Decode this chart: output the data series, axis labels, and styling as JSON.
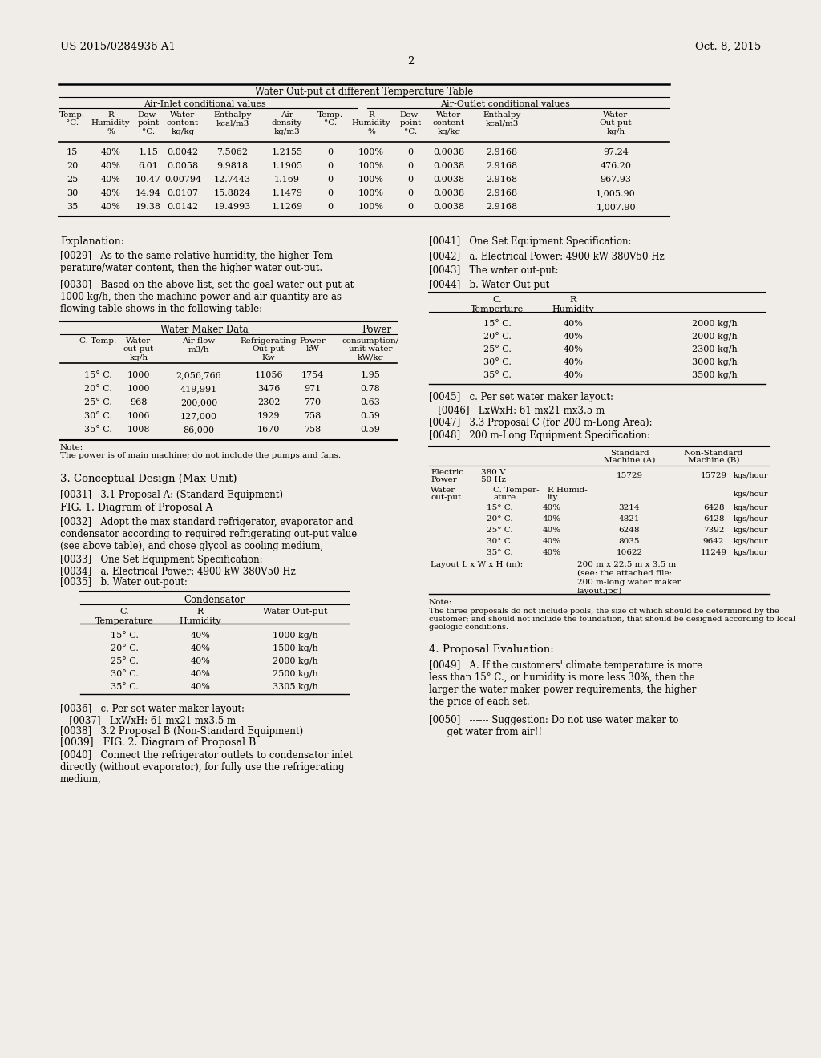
{
  "bg_color": "#f0ede8",
  "header_left": "US 2015/0284936 A1",
  "header_right": "Oct. 8, 2015",
  "page_num": "2",
  "table1_title": "Water Out-put at different Temperature Table",
  "table1_sub1": "Air-Inlet conditional values",
  "table1_sub2": "Air-Outlet conditional values",
  "table1_data": [
    [
      "15",
      "40%",
      "1.15",
      "0.0042",
      "7.5062",
      "1.2155",
      "0",
      "100%",
      "0",
      "0.0038",
      "2.9168",
      "97.24"
    ],
    [
      "20",
      "40%",
      "6.01",
      "0.0058",
      "9.9818",
      "1.1905",
      "0",
      "100%",
      "0",
      "0.0038",
      "2.9168",
      "476.20"
    ],
    [
      "25",
      "40%",
      "10.47",
      "0.00794",
      "12.7443",
      "1.169",
      "0",
      "100%",
      "0",
      "0.0038",
      "2.9168",
      "967.93"
    ],
    [
      "30",
      "40%",
      "14.94",
      "0.0107",
      "15.8824",
      "1.1479",
      "0",
      "100%",
      "0",
      "0.0038",
      "2.9168",
      "1,005.90"
    ],
    [
      "35",
      "40%",
      "19.38",
      "0.0142",
      "19.4993",
      "1.1269",
      "0",
      "100%",
      "0",
      "0.0038",
      "2.9168",
      "1,007.90"
    ]
  ],
  "section4": "4. Proposal Evaluation:",
  "para49": "[0049]   A. If the customers' climate temperature is more\nless than 15° C., or humidity is more less 30%, then the\nlarger the water maker power requirements, the higher\nthe price of each set.",
  "para50": "[0050]   ------ Suggestion: Do not use water maker to\n      get water from air!!"
}
